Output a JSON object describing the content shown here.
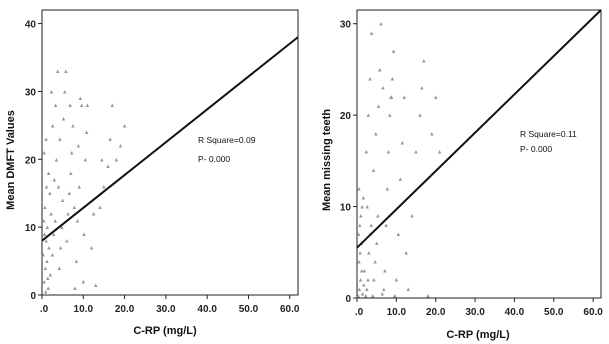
{
  "chart_data": [
    {
      "type": "scatter",
      "title": "",
      "xlabel": "C-RP (mg/L)",
      "ylabel": "Mean DMFT Values",
      "xlim": [
        0,
        62
      ],
      "ylim": [
        0,
        42
      ],
      "xticks": [
        0,
        10,
        20,
        30,
        40,
        50,
        60
      ],
      "xtick_labels": [
        ".0",
        "10.0",
        "20.0",
        "30.0",
        "40.0",
        "50.0",
        "60.0"
      ],
      "yticks": [
        0,
        10,
        20,
        30,
        40
      ],
      "ytick_labels": [
        "0",
        "10",
        "20",
        "30",
        "40"
      ],
      "grid": false,
      "marker": "triangle",
      "marker_color": "#999999",
      "line_color": "#111111",
      "annotations": [
        "R Square=0.09",
        "P- 0.000"
      ],
      "fit_line": {
        "x": [
          0,
          62
        ],
        "y": [
          8,
          38
        ]
      },
      "points": [
        [
          0.3,
          6
        ],
        [
          0.5,
          2
        ],
        [
          0.8,
          4
        ],
        [
          1,
          8
        ],
        [
          1.2,
          5
        ],
        [
          1.5,
          1
        ],
        [
          0.4,
          11
        ],
        [
          0.7,
          13
        ],
        [
          1.1,
          16
        ],
        [
          1.6,
          18
        ],
        [
          0.5,
          21
        ],
        [
          1,
          23
        ],
        [
          1.3,
          10
        ],
        [
          1.7,
          7
        ],
        [
          2,
          3
        ],
        [
          2.2,
          12
        ],
        [
          0.6,
          9
        ],
        [
          1.9,
          15
        ],
        [
          0.9,
          0.5
        ],
        [
          1.4,
          2.5
        ],
        [
          2.5,
          6
        ],
        [
          2.8,
          9
        ],
        [
          3.2,
          11
        ],
        [
          3,
          17
        ],
        [
          3.5,
          20
        ],
        [
          2.6,
          25
        ],
        [
          3.3,
          28
        ],
        [
          3.8,
          33
        ],
        [
          4.2,
          4
        ],
        [
          4.5,
          7
        ],
        [
          4.8,
          10
        ],
        [
          5,
          14
        ],
        [
          4.3,
          23
        ],
        [
          5.2,
          26
        ],
        [
          5.5,
          30
        ],
        [
          5.8,
          33
        ],
        [
          6,
          8
        ],
        [
          6.3,
          12
        ],
        [
          6.6,
          15
        ],
        [
          7,
          18
        ],
        [
          7.2,
          21
        ],
        [
          7.5,
          25
        ],
        [
          6.8,
          28
        ],
        [
          8,
          1
        ],
        [
          8.3,
          5
        ],
        [
          8.6,
          11
        ],
        [
          9,
          16
        ],
        [
          8.8,
          22
        ],
        [
          9.3,
          29
        ],
        [
          10,
          2
        ],
        [
          10.2,
          9
        ],
        [
          10.5,
          20
        ],
        [
          10.8,
          24
        ],
        [
          11,
          28
        ],
        [
          12,
          7
        ],
        [
          12.5,
          12
        ],
        [
          13,
          1.5
        ],
        [
          14,
          13
        ],
        [
          14.5,
          20
        ],
        [
          15,
          16
        ],
        [
          16,
          19
        ],
        [
          16.5,
          23
        ],
        [
          17,
          28
        ],
        [
          18,
          20
        ],
        [
          19,
          22
        ],
        [
          20,
          25
        ],
        [
          9.6,
          28
        ],
        [
          7.8,
          13
        ],
        [
          4,
          16
        ],
        [
          2.3,
          30
        ]
      ]
    },
    {
      "type": "scatter",
      "title": "",
      "xlabel": "C-RP (mg/L)",
      "ylabel": "Mean missing teeth",
      "xlim": [
        0,
        62
      ],
      "ylim": [
        0,
        31.5
      ],
      "xticks": [
        0,
        10,
        20,
        30,
        40,
        50,
        60
      ],
      "xtick_labels": [
        ".0",
        "10.0",
        "20.0",
        "30.0",
        "40.0",
        "50.0",
        "60.0"
      ],
      "yticks": [
        0,
        10,
        20,
        30
      ],
      "ytick_labels": [
        "0",
        "10",
        "20",
        "30"
      ],
      "grid": false,
      "marker": "triangle",
      "marker_color": "#999999",
      "line_color": "#111111",
      "annotations": [
        "R Square=0.11",
        "P- 0.000"
      ],
      "fit_line": {
        "x": [
          0,
          62
        ],
        "y": [
          5.5,
          31.5
        ]
      },
      "points": [
        [
          0.3,
          0.3
        ],
        [
          0.6,
          1
        ],
        [
          0.9,
          2
        ],
        [
          1.2,
          3
        ],
        [
          0.5,
          4
        ],
        [
          0.8,
          5
        ],
        [
          1.1,
          6
        ],
        [
          1.4,
          0.5
        ],
        [
          1.7,
          1.5
        ],
        [
          0.4,
          7
        ],
        [
          0.7,
          8
        ],
        [
          1,
          9
        ],
        [
          1.3,
          10
        ],
        [
          1.6,
          11
        ],
        [
          0.5,
          12
        ],
        [
          1.9,
          3
        ],
        [
          2.2,
          0.3
        ],
        [
          2.5,
          1
        ],
        [
          2.8,
          2
        ],
        [
          3,
          5
        ],
        [
          3.3,
          7
        ],
        [
          3.6,
          8
        ],
        [
          2.4,
          16
        ],
        [
          2.9,
          20
        ],
        [
          3.3,
          24
        ],
        [
          3.7,
          29
        ],
        [
          4,
          0.3
        ],
        [
          4.3,
          2
        ],
        [
          4.6,
          4
        ],
        [
          5,
          6
        ],
        [
          5.3,
          9
        ],
        [
          4.8,
          18
        ],
        [
          5.5,
          21
        ],
        [
          5.8,
          25
        ],
        [
          6.1,
          30
        ],
        [
          6.4,
          0.5
        ],
        [
          6.8,
          1
        ],
        [
          7.1,
          3
        ],
        [
          7.4,
          8
        ],
        [
          7.7,
          12
        ],
        [
          8,
          16
        ],
        [
          8.3,
          20
        ],
        [
          8.6,
          22
        ],
        [
          9,
          24
        ],
        [
          9.3,
          27
        ],
        [
          9.6,
          0.3
        ],
        [
          10,
          2
        ],
        [
          10.5,
          7
        ],
        [
          11,
          13
        ],
        [
          11.5,
          17
        ],
        [
          12,
          22
        ],
        [
          12.5,
          5
        ],
        [
          13,
          1
        ],
        [
          14,
          9
        ],
        [
          15,
          16
        ],
        [
          16,
          20
        ],
        [
          16.5,
          23
        ],
        [
          17,
          26
        ],
        [
          18,
          0.3
        ],
        [
          19,
          18
        ],
        [
          20,
          22
        ],
        [
          21,
          16
        ],
        [
          4.2,
          14
        ],
        [
          6.6,
          23
        ],
        [
          8.8,
          22
        ],
        [
          2.6,
          10
        ]
      ]
    }
  ]
}
